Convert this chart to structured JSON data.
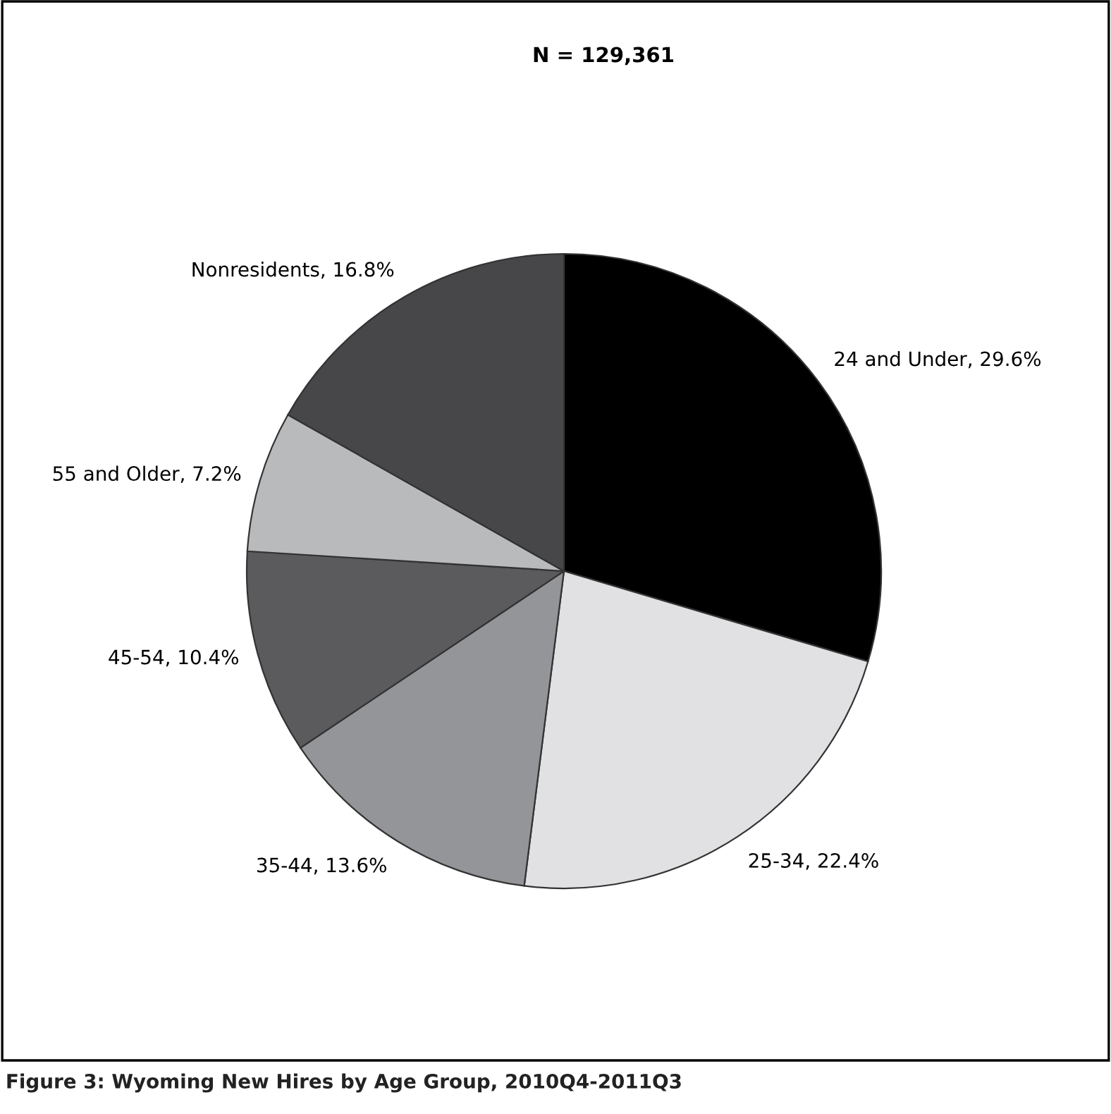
{
  "chart_data": {
    "type": "pie",
    "title": "N = 129,361",
    "categories": [
      "24 and Under",
      "25-34",
      "35-44",
      "45-54",
      "55 and Older",
      "Nonresidents"
    ],
    "values": [
      29.6,
      22.4,
      13.6,
      10.4,
      7.2,
      16.8
    ],
    "value_labels": [
      "29.6%",
      "22.4%",
      "13.6%",
      "10.4%",
      "7.2%",
      "16.8%"
    ],
    "colors": [
      "#000000",
      "#e1e1e3",
      "#949598",
      "#5b5b5d",
      "#b9babc",
      "#47474a"
    ],
    "legend": false,
    "annotations": [
      "Figure 3: Wyoming New Hires by Age Group, 2010Q4-2011Q3"
    ]
  }
}
